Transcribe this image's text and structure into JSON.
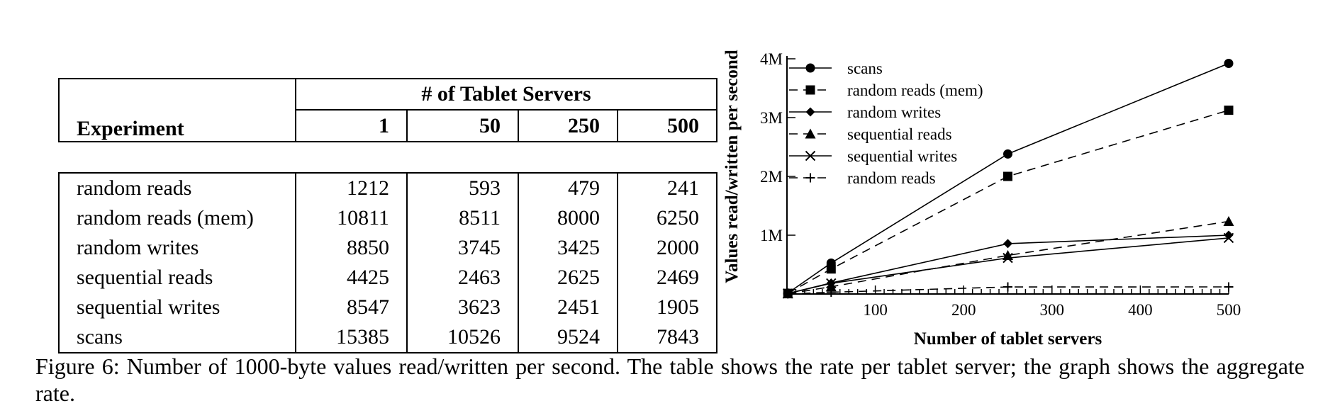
{
  "table": {
    "group_header": "# of Tablet Servers",
    "experiment_header": "Experiment",
    "columns": [
      "1",
      "50",
      "250",
      "500"
    ],
    "rows": [
      {
        "label": "random reads",
        "values": [
          "1212",
          "593",
          "479",
          "241"
        ]
      },
      {
        "label": "random reads (mem)",
        "values": [
          "10811",
          "8511",
          "8000",
          "6250"
        ]
      },
      {
        "label": "random writes",
        "values": [
          "8850",
          "3745",
          "3425",
          "2000"
        ]
      },
      {
        "label": "sequential reads",
        "values": [
          "4425",
          "2463",
          "2625",
          "2469"
        ]
      },
      {
        "label": "sequential writes",
        "values": [
          "8547",
          "3623",
          "2451",
          "1905"
        ]
      },
      {
        "label": "scans",
        "values": [
          "15385",
          "10526",
          "9524",
          "7843"
        ]
      }
    ]
  },
  "chart_data": {
    "type": "line",
    "xlabel": "Number of tablet servers",
    "ylabel": "Values read/written per second",
    "xlim": [
      0,
      500
    ],
    "ylim": [
      0,
      4000000
    ],
    "xticks": [
      100,
      200,
      300,
      400,
      500
    ],
    "xtick_labels": [
      "100",
      "200",
      "300",
      "400",
      "500"
    ],
    "yticks": [
      1000000,
      2000000,
      3000000,
      4000000
    ],
    "ytick_labels": [
      "1M",
      "2M",
      "3M",
      "4M"
    ],
    "legend_position": "top-left",
    "grid": false,
    "x": [
      1,
      50,
      250,
      500
    ],
    "series": [
      {
        "name": "scans",
        "marker": "circle",
        "dash": "solid",
        "values": [
          15385,
          526300,
          2381000,
          3921500
        ]
      },
      {
        "name": "random reads (mem)",
        "marker": "square",
        "dash": "dashed",
        "values": [
          10811,
          425550,
          2000000,
          3125000
        ]
      },
      {
        "name": "random writes",
        "marker": "diamond",
        "dash": "solid",
        "values": [
          8850,
          187250,
          856250,
          1000000
        ]
      },
      {
        "name": "sequential reads",
        "marker": "triangle",
        "dash": "dashed",
        "values": [
          4425,
          123150,
          656250,
          1234500
        ]
      },
      {
        "name": "sequential writes",
        "marker": "x",
        "dash": "solid",
        "values": [
          8547,
          181150,
          612750,
          952500
        ]
      },
      {
        "name": "random reads",
        "marker": "plus",
        "dash": "dashed",
        "values": [
          1212,
          29650,
          119750,
          120500
        ]
      }
    ]
  },
  "caption": "Figure 6: Number of 1000-byte values read/written per second. The table shows the rate per tablet server; the graph shows the aggregate rate."
}
